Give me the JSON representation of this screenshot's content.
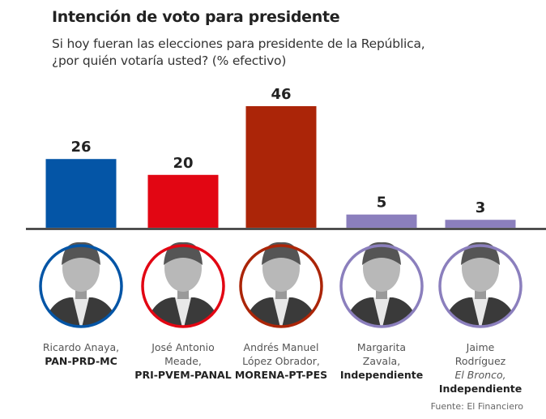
{
  "header": {
    "title": "Intención de voto para presidente",
    "subtitle_line1": "Si hoy fueran las elecciones para presidente de la República,",
    "subtitle_line2": "¿por quién votaría usted? (% efectivo)"
  },
  "chart_data": {
    "type": "bar",
    "title": "Intención de voto para presidente",
    "subtitle": "Si hoy fueran las elecciones para presidente de la República, ¿por quién votaría usted? (% efectivo)",
    "xlabel": "",
    "ylabel": "% efectivo",
    "categories": [
      "Ricardo Anaya, PAN-PRD-MC",
      "José Antonio Meade, PRI-PVEM-PANAL",
      "Andrés Manuel López Obrador, MORENA-PT-PES",
      "Margarita Zavala, Independiente",
      "Jaime Rodríguez El Bronco, Independiente"
    ],
    "values": [
      26,
      20,
      46,
      5,
      3
    ],
    "value_labels": [
      "26",
      "20",
      "46",
      "5",
      "3"
    ],
    "colors": [
      "#0455a6",
      "#e20613",
      "#ab2508",
      "#8b7fbd",
      "#8b7fbd"
    ],
    "ylim": [
      0,
      46
    ],
    "grid": false,
    "legend": "none",
    "axis_color": "#333333"
  },
  "candidates": [
    {
      "name_lines": [
        "Ricardo Anaya,"
      ],
      "nickname": "",
      "party": "PAN-PRD-MC",
      "ring_color": "#0455a6",
      "portrait": "portrait-photo"
    },
    {
      "name_lines": [
        "José Antonio",
        "Meade,"
      ],
      "nickname": "",
      "party": "PRI-PVEM-PANAL",
      "ring_color": "#e20613",
      "portrait": "portrait-photo"
    },
    {
      "name_lines": [
        "Andrés Manuel",
        "López Obrador,"
      ],
      "nickname": "",
      "party": "MORENA-PT-PES",
      "ring_color": "#ab2508",
      "portrait": "portrait-photo"
    },
    {
      "name_lines": [
        "Margarita",
        "Zavala,"
      ],
      "nickname": "",
      "party": "Independiente",
      "ring_color": "#8b7fbd",
      "portrait": "portrait-photo"
    },
    {
      "name_lines": [
        "Jaime",
        "Rodríguez"
      ],
      "nickname": "El Bronco,",
      "party": "Independiente",
      "ring_color": "#8b7fbd",
      "portrait": "portrait-photo"
    }
  ],
  "footer": {
    "source": "Fuente: El Financiero"
  }
}
